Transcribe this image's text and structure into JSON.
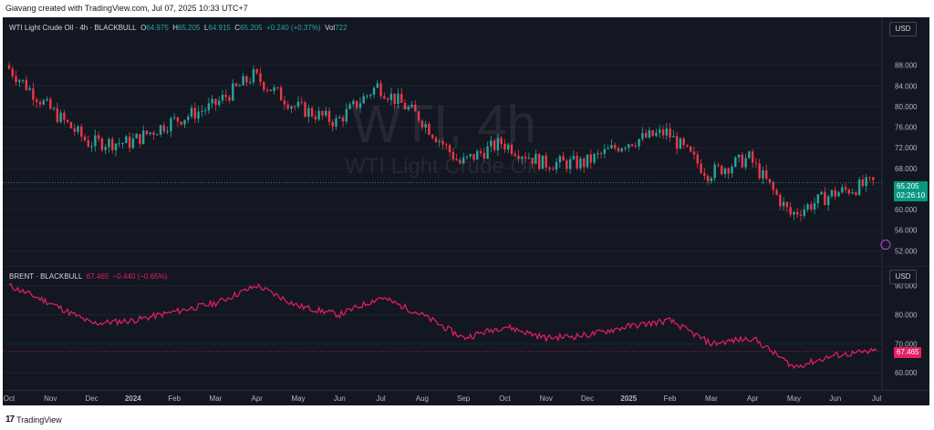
{
  "caption": "Giavang created with TradingView.com, Jul 07, 2025 10:33 UTC+7",
  "footer": {
    "logo_text": "TradingView"
  },
  "colors": {
    "up": "#26a69a",
    "down": "#f23645",
    "brent_line": "#e91e63",
    "background": "#131722",
    "grid": "#1e222d",
    "current_label_bg": "#089981"
  },
  "wti": {
    "legend_title": "WTI Light Crude Oil · 4h · BLACKBULL",
    "o_label": "O",
    "o_value": "64.975",
    "h_label": "H",
    "h_value": "65.205",
    "l_label": "L",
    "l_value": "64.915",
    "c_label": "C",
    "c_value": "65.205",
    "change": "+0.240 (+0.37%)",
    "vol_label": "Vol",
    "vol_value": "722",
    "currency": "USD",
    "watermark_big": "WTI, 4h",
    "watermark_small": "WTI Light Crude Oil",
    "last_price": "65.205",
    "countdown": "02:26:10"
  },
  "brent": {
    "legend_title": "BRENT · BLACKBULL",
    "price": "67.465",
    "change": "−0.440 (−0.65%)",
    "currency": "USD",
    "last_price": "67.465"
  },
  "chart_data": [
    {
      "type": "candlestick",
      "title": "WTI Light Crude Oil · 4h · BLACKBULL",
      "x": [
        "Oct",
        "Nov",
        "Dec",
        "2024",
        "Feb",
        "Mar",
        "Apr",
        "May",
        "Jun",
        "Jul",
        "Aug",
        "Sep",
        "Oct",
        "Nov",
        "Dec",
        "2025",
        "Feb",
        "Mar",
        "Apr",
        "May",
        "Jun",
        "Jul"
      ],
      "close_approx": [
        88.0,
        80.0,
        73.0,
        73.0,
        77.0,
        80.0,
        86.0,
        80.0,
        77.0,
        84.0,
        78.0,
        69.0,
        73.0,
        69.0,
        69.0,
        73.0,
        75.0,
        67.0,
        70.0,
        59.0,
        63.0,
        65.2
      ],
      "yticks": [
        52,
        56,
        60,
        64,
        68,
        72,
        76,
        80,
        84,
        88
      ],
      "ylim": [
        51,
        92
      ],
      "last": 65.205
    },
    {
      "type": "line",
      "title": "BRENT · BLACKBULL",
      "x": [
        "Oct",
        "Nov",
        "Dec",
        "2024",
        "Feb",
        "Mar",
        "Apr",
        "May",
        "Jun",
        "Jul",
        "Aug",
        "Sep",
        "Oct",
        "Nov",
        "Dec",
        "2025",
        "Feb",
        "Mar",
        "Apr",
        "May",
        "Jun",
        "Jul"
      ],
      "values": [
        90.0,
        84.0,
        77.0,
        78.0,
        81.0,
        84.0,
        90.0,
        83.0,
        80.0,
        86.0,
        80.0,
        72.0,
        76.0,
        72.0,
        73.0,
        76.0,
        78.0,
        70.0,
        72.0,
        62.0,
        66.0,
        67.465
      ],
      "yticks": [
        60,
        70,
        80,
        90
      ],
      "ylim": [
        56,
        93
      ],
      "last": 67.465
    }
  ],
  "x_axis": {
    "labels": [
      "Oct",
      "Nov",
      "Dec",
      "2024",
      "Feb",
      "Mar",
      "Apr",
      "May",
      "Jun",
      "Jul",
      "Aug",
      "Sep",
      "Oct",
      "Nov",
      "Dec",
      "2025",
      "Feb",
      "Mar",
      "Apr",
      "May",
      "Jun",
      "Jul"
    ]
  }
}
